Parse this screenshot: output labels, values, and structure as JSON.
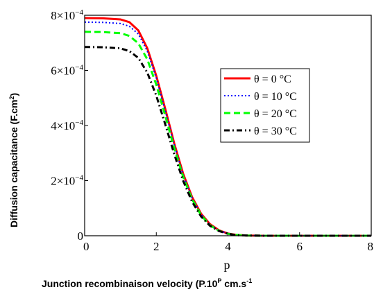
{
  "chart_data": {
    "type": "line",
    "ylabel": "Diffusion capacitance (F.cm²)",
    "ylabel_parts": [
      "Diffusion capacitance (F.cm",
      "2",
      ")"
    ],
    "xvar_label": "p",
    "xlabel": "Junction recombinaison velocity (P.10P  cm.s-1",
    "xlabel_parts": [
      "Junction recombinaison velocity (P.10",
      "P",
      "  cm.s",
      "-1"
    ],
    "xlim": [
      0,
      8
    ],
    "ylim": [
      0,
      0.0008
    ],
    "x_ticks": [
      {
        "value": 0,
        "label": "0"
      },
      {
        "value": 2,
        "label": "2"
      },
      {
        "value": 4,
        "label": "4"
      },
      {
        "value": 6,
        "label": "6"
      },
      {
        "value": 8,
        "label": "8"
      }
    ],
    "y_ticks": [
      {
        "value": 0,
        "label": "0"
      },
      {
        "value": 0.0002,
        "label": "2×10",
        "exp": "−4"
      },
      {
        "value": 0.0004,
        "label": "4×10",
        "exp": "−4"
      },
      {
        "value": 0.0006,
        "label": "6×10",
        "exp": "−4"
      },
      {
        "value": 0.0008,
        "label": "8×10",
        "exp": "−4"
      }
    ],
    "legend_position": "center-right",
    "series": [
      {
        "name": "θ = 0 °C",
        "color": "#ff0000",
        "dash": "solid",
        "width": 3,
        "x": [
          0,
          0.5,
          1.0,
          1.25,
          1.5,
          1.75,
          2.0,
          2.25,
          2.5,
          2.75,
          3.0,
          3.25,
          3.5,
          3.75,
          4.0,
          4.25,
          4.5,
          5,
          6,
          7,
          8
        ],
        "y": [
          0.00079,
          0.000789,
          0.000785,
          0.000775,
          0.000745,
          0.00068,
          0.00058,
          0.00046,
          0.000335,
          0.000225,
          0.00014,
          8e-05,
          4.2e-05,
          2e-05,
          8e-06,
          3e-06,
          1e-06,
          0,
          0,
          0,
          0
        ]
      },
      {
        "name": "θ = 10 °C",
        "color": "#0000ff",
        "dash": "dotted",
        "width": 2,
        "x": [
          0,
          0.5,
          1.0,
          1.25,
          1.5,
          1.75,
          2.0,
          2.25,
          2.5,
          2.75,
          3.0,
          3.25,
          3.5,
          3.75,
          4.0,
          4.25,
          4.5,
          5,
          6,
          7,
          8
        ],
        "y": [
          0.000775,
          0.000774,
          0.00077,
          0.00076,
          0.000732,
          0.00067,
          0.000572,
          0.000453,
          0.00033,
          0.00022,
          0.000137,
          7.8e-05,
          4e-05,
          1.9e-05,
          8e-06,
          3e-06,
          1e-06,
          0,
          0,
          0,
          0
        ]
      },
      {
        "name": "θ = 20 °C",
        "color": "#00ff00",
        "dash": "dashed",
        "width": 3,
        "x": [
          0,
          0.5,
          1.0,
          1.25,
          1.5,
          1.75,
          2.0,
          2.25,
          2.5,
          2.75,
          3.0,
          3.25,
          3.5,
          3.75,
          4.0,
          4.25,
          4.5,
          5,
          6,
          7,
          8
        ],
        "y": [
          0.00074,
          0.000739,
          0.000735,
          0.000725,
          0.000698,
          0.00064,
          0.000548,
          0.000435,
          0.000318,
          0.000213,
          0.000132,
          7.5e-05,
          3.8e-05,
          1.8e-05,
          7e-06,
          3e-06,
          1e-06,
          0,
          0,
          0,
          0
        ]
      },
      {
        "name": "θ = 30 °C",
        "color": "#000000",
        "dash": "dashdot",
        "width": 3,
        "x": [
          0,
          0.5,
          1.0,
          1.25,
          1.5,
          1.75,
          2.0,
          2.25,
          2.5,
          2.75,
          3.0,
          3.25,
          3.5,
          3.75,
          4.0,
          4.25,
          4.5,
          5,
          6,
          7,
          8
        ],
        "y": [
          0.000685,
          0.000684,
          0.00068,
          0.00067,
          0.000645,
          0.000592,
          0.000508,
          0.000404,
          0.000296,
          0.000199,
          0.000123,
          7e-05,
          3.6e-05,
          1.7e-05,
          7e-06,
          2e-06,
          1e-06,
          0,
          0,
          0,
          0
        ]
      }
    ]
  }
}
